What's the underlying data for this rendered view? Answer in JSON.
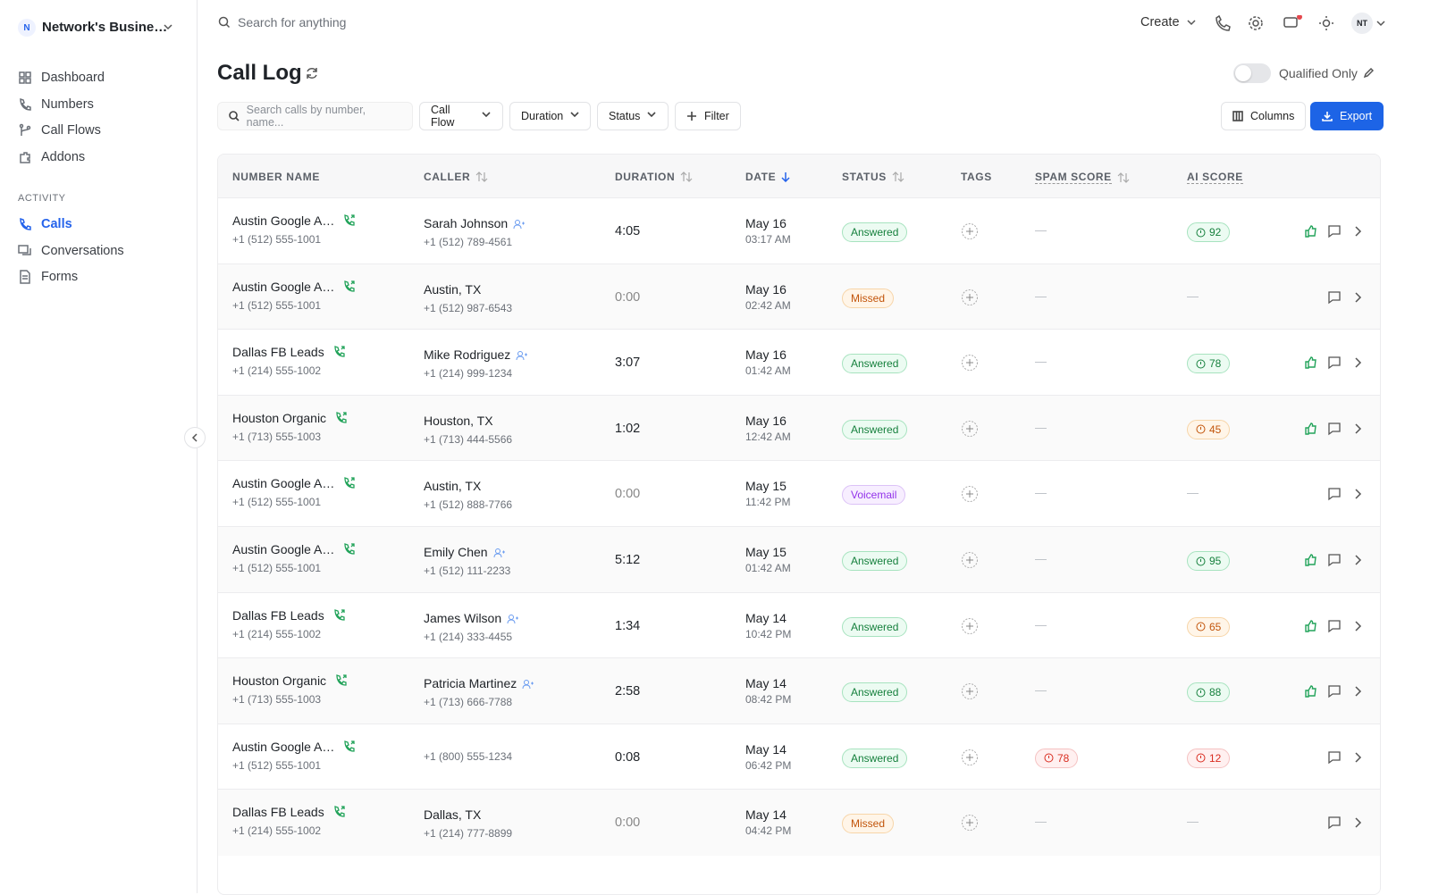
{
  "sidebar": {
    "workspace": {
      "initial": "N",
      "name": "Network's Busine…"
    },
    "nav": [
      "Dashboard",
      "Numbers",
      "Call Flows",
      "Addons"
    ],
    "section": "ACTIVITY",
    "activity": [
      "Calls",
      "Conversations",
      "Forms"
    ]
  },
  "topbar": {
    "search": "Search for anything",
    "create": "Create",
    "avatar": "NT"
  },
  "header": {
    "title": "Call Log",
    "toggle": "Qualified Only"
  },
  "filters": {
    "search": "Search calls by number, name...",
    "dropdowns": [
      "Call Flow",
      "Duration",
      "Status"
    ],
    "filter": "Filter",
    "columns": "Columns",
    "export": "Export"
  },
  "table": {
    "columns": [
      "NUMBER NAME",
      "CALLER",
      "DURATION",
      "DATE",
      "STATUS",
      "TAGS",
      "SPAM SCORE",
      "AI SCORE"
    ],
    "rows": [
      {
        "number_name": "Austin Google A…",
        "number": "+1 (512) 555-1001",
        "caller": "Sarah Johnson",
        "contact": true,
        "caller_phone": "+1 (512) 789-4561",
        "duration": "4:05",
        "date": "May 16",
        "time": "03:17 AM",
        "status": "Answered",
        "spam": "—",
        "ai": {
          "value": 92,
          "tone": "green"
        },
        "rated": true
      },
      {
        "number_name": "Austin Google A…",
        "number": "+1 (512) 555-1001",
        "caller": "Austin, TX",
        "caller_phone": "+1 (512) 987-6543",
        "duration": "0:00",
        "date": "May 16",
        "time": "02:42 AM",
        "status": "Missed",
        "spam": "—",
        "ai": "—"
      },
      {
        "number_name": "Dallas FB Leads",
        "number": "+1 (214) 555-1002",
        "caller": "Mike Rodriguez",
        "contact": true,
        "caller_phone": "+1 (214) 999-1234",
        "duration": "3:07",
        "date": "May 16",
        "time": "01:42 AM",
        "status": "Answered",
        "spam": "—",
        "ai": {
          "value": 78,
          "tone": "green"
        },
        "rated": true
      },
      {
        "number_name": "Houston Organic",
        "number": "+1 (713) 555-1003",
        "caller": "Houston, TX",
        "caller_phone": "+1 (713) 444-5566",
        "duration": "1:02",
        "date": "May 16",
        "time": "12:42 AM",
        "status": "Answered",
        "spam": "—",
        "ai": {
          "value": 45,
          "tone": "amber"
        },
        "rated": true
      },
      {
        "number_name": "Austin Google A…",
        "number": "+1 (512) 555-1001",
        "caller": "Austin, TX",
        "caller_phone": "+1 (512) 888-7766",
        "duration": "0:00",
        "date": "May 15",
        "time": "11:42 PM",
        "status": "Voicemail",
        "spam": "—",
        "ai": "—"
      },
      {
        "number_name": "Austin Google A…",
        "number": "+1 (512) 555-1001",
        "caller": "Emily Chen",
        "contact": true,
        "caller_phone": "+1 (512) 111-2233",
        "duration": "5:12",
        "date": "May 15",
        "time": "01:42 AM",
        "status": "Answered",
        "spam": "—",
        "ai": {
          "value": 95,
          "tone": "green"
        },
        "rated": true
      },
      {
        "number_name": "Dallas FB Leads",
        "number": "+1 (214) 555-1002",
        "caller": "James Wilson",
        "contact": true,
        "caller_phone": "+1 (214) 333-4455",
        "duration": "1:34",
        "date": "May 14",
        "time": "10:42 PM",
        "status": "Answered",
        "spam": "—",
        "ai": {
          "value": 65,
          "tone": "amber"
        },
        "rated": true
      },
      {
        "number_name": "Houston Organic",
        "number": "+1 (713) 555-1003",
        "caller": "Patricia Martinez",
        "contact": true,
        "caller_phone": "+1 (713) 666-7788",
        "duration": "2:58",
        "date": "May 14",
        "time": "08:42 PM",
        "status": "Answered",
        "spam": "—",
        "ai": {
          "value": 88,
          "tone": "green"
        },
        "rated": true
      },
      {
        "number_name": "Austin Google A…",
        "number": "+1 (512) 555-1001",
        "caller_phone": "+1 (800) 555-1234",
        "duration": "0:08",
        "date": "May 14",
        "time": "06:42 PM",
        "status": "Answered",
        "spam": {
          "value": 78,
          "tone": "red"
        },
        "ai": {
          "value": 12,
          "tone": "red"
        }
      },
      {
        "number_name": "Dallas FB Leads",
        "number": "+1 (214) 555-1002",
        "caller": "Dallas, TX",
        "caller_phone": "+1 (214) 777-8899",
        "duration": "0:00",
        "date": "May 14",
        "time": "04:42 PM",
        "status": "Missed",
        "spam": "—",
        "ai": "—"
      }
    ]
  }
}
